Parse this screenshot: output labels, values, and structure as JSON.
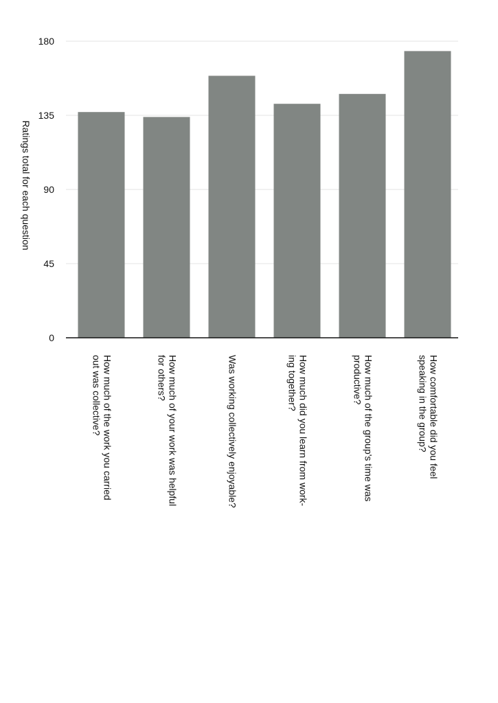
{
  "chart_data": {
    "type": "bar",
    "title": "",
    "xlabel": "",
    "ylabel": "Ratings total for each question",
    "ylim": [
      0,
      180
    ],
    "yticks": [
      0,
      45,
      90,
      135,
      180
    ],
    "grid": true,
    "legend": "none",
    "bar_color": "#818683",
    "categories": [
      [
        "How much of the work you carried",
        "out was collective?"
      ],
      [
        "How much of your work was helpful",
        "for others?"
      ],
      [
        "Was working collectively enjoyable?"
      ],
      [
        "How much did you learn from work-",
        "ing together?"
      ],
      [
        "How much of the group's time was",
        "productive?"
      ],
      [
        "How comfortable did you feel",
        "speaking in the group?"
      ]
    ],
    "values": [
      137,
      134,
      159,
      142,
      148,
      174
    ]
  }
}
